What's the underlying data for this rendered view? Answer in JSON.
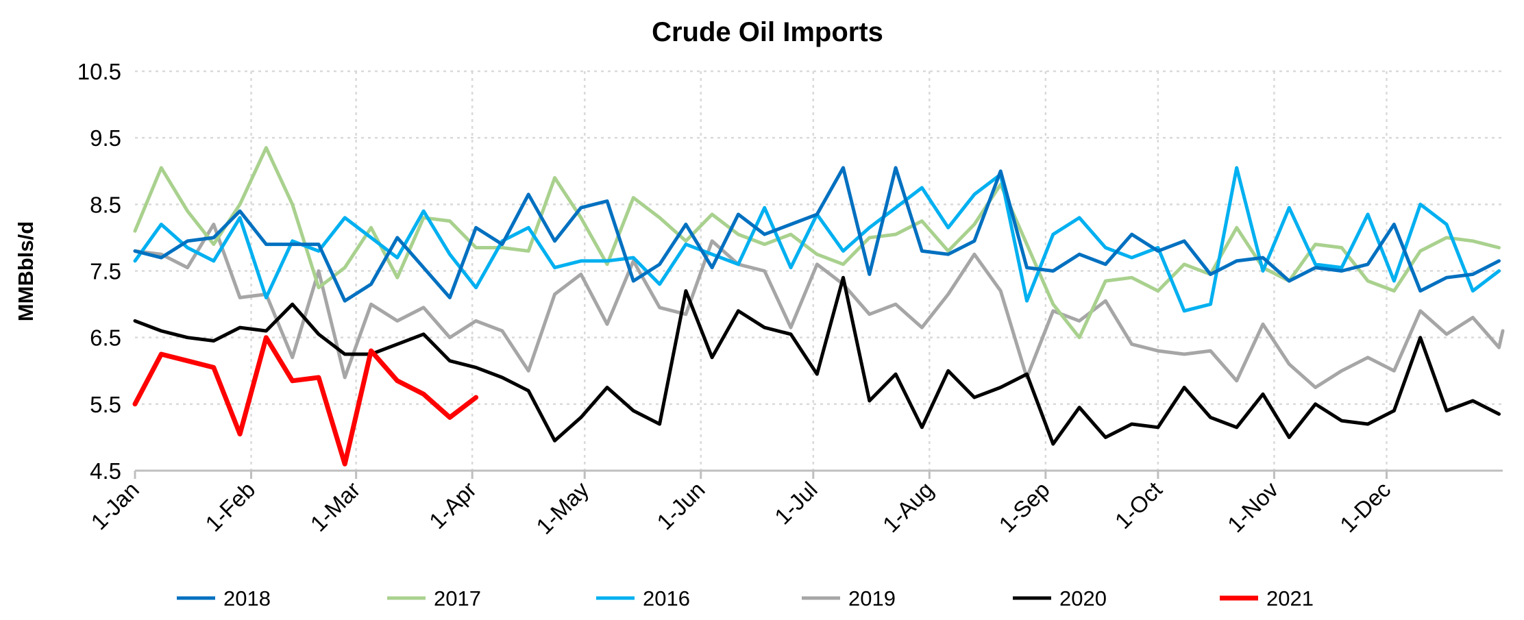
{
  "chart_data": {
    "type": "line",
    "title": "Crude Oil Imports",
    "xlabel": "",
    "ylabel": "MMBbls/d",
    "ylim": [
      4.5,
      10.5
    ],
    "yticks": [
      "4.5",
      "5.5",
      "6.5",
      "7.5",
      "8.5",
      "9.5",
      "10.5"
    ],
    "xlim_days": [
      0,
      365
    ],
    "xticks": [
      {
        "label": "1-Jan",
        "day": 0
      },
      {
        "label": "1-Feb",
        "day": 31
      },
      {
        "label": "1-Mar",
        "day": 59
      },
      {
        "label": "1-Apr",
        "day": 90
      },
      {
        "label": "1-May",
        "day": 120
      },
      {
        "label": "1-Jun",
        "day": 151
      },
      {
        "label": "1-Jul",
        "day": 181
      },
      {
        "label": "1-Aug",
        "day": 212
      },
      {
        "label": "1-Sep",
        "day": 243
      },
      {
        "label": "1-Oct",
        "day": 273
      },
      {
        "label": "1-Nov",
        "day": 304
      },
      {
        "label": "1-Dec",
        "day": 334
      }
    ],
    "x_step_days": 7,
    "grid": true,
    "legend_position": "bottom",
    "series": [
      {
        "name": "2018",
        "color": "#0070c0",
        "values": [
          7.8,
          7.7,
          7.95,
          8.0,
          8.4,
          7.9,
          7.9,
          7.9,
          7.05,
          7.3,
          8.0,
          7.55,
          7.1,
          8.15,
          7.9,
          8.65,
          7.95,
          8.45,
          8.55,
          7.35,
          7.6,
          8.2,
          7.55,
          8.35,
          8.05,
          8.2,
          8.35,
          9.05,
          7.45,
          9.05,
          7.8,
          7.75,
          7.95,
          9.0,
          7.55,
          7.5,
          7.75,
          7.6,
          8.05,
          7.8,
          7.95,
          7.45,
          7.65,
          7.7,
          7.35,
          7.55,
          7.5,
          7.6,
          8.2,
          7.2,
          7.4,
          7.45,
          7.65
        ]
      },
      {
        "name": "2017",
        "color": "#a9d18e",
        "values": [
          8.1,
          9.05,
          8.4,
          7.9,
          8.5,
          9.35,
          8.5,
          7.25,
          7.55,
          8.15,
          7.4,
          8.3,
          8.25,
          7.85,
          7.85,
          7.8,
          8.9,
          8.3,
          7.6,
          8.6,
          8.3,
          7.95,
          8.35,
          8.05,
          7.9,
          8.05,
          7.75,
          7.6,
          8.0,
          8.05,
          8.25,
          7.8,
          8.2,
          8.8,
          7.9,
          7.0,
          6.5,
          7.35,
          7.4,
          7.2,
          7.6,
          7.45,
          8.15,
          7.55,
          7.35,
          7.9,
          7.85,
          7.35,
          7.2,
          7.8,
          8.0,
          7.95,
          7.85
        ]
      },
      {
        "name": "2016",
        "color": "#00b0f0",
        "values": [
          7.65,
          8.2,
          7.85,
          7.65,
          8.3,
          7.1,
          7.95,
          7.8,
          8.3,
          8.0,
          7.7,
          8.4,
          7.75,
          7.25,
          7.95,
          8.15,
          7.55,
          7.65,
          7.65,
          7.7,
          7.3,
          7.9,
          7.75,
          7.6,
          8.45,
          7.55,
          8.35,
          7.8,
          8.15,
          8.45,
          8.75,
          8.15,
          8.65,
          8.95,
          7.05,
          8.05,
          8.3,
          7.85,
          7.7,
          7.85,
          6.9,
          7.0,
          9.05,
          7.5,
          8.45,
          7.6,
          7.55,
          8.35,
          7.35,
          8.5,
          8.2,
          7.2,
          7.5
        ]
      },
      {
        "name": "2019",
        "color": "#a6a6a6",
        "values": [
          7.8,
          7.75,
          7.55,
          8.2,
          7.1,
          7.15,
          6.2,
          7.5,
          5.9,
          7.0,
          6.75,
          6.95,
          6.5,
          6.75,
          6.6,
          6.0,
          7.15,
          7.45,
          6.7,
          7.65,
          6.95,
          6.85,
          7.95,
          7.6,
          7.5,
          6.65,
          7.6,
          7.3,
          6.85,
          7.0,
          6.65,
          7.15,
          7.75,
          7.2,
          5.9,
          6.9,
          6.75,
          7.05,
          6.4,
          6.3,
          6.25,
          6.3,
          5.85,
          6.7,
          6.1,
          5.75,
          6.0,
          6.2,
          6.0,
          6.9,
          6.55,
          6.8,
          6.35,
          6.6
        ]
      },
      {
        "name": "2020",
        "color": "#000000",
        "values": [
          6.75,
          6.6,
          6.5,
          6.45,
          6.65,
          6.6,
          7.0,
          6.55,
          6.25,
          6.25,
          6.4,
          6.55,
          6.15,
          6.05,
          5.9,
          5.7,
          4.95,
          5.3,
          5.75,
          5.4,
          5.2,
          7.2,
          6.2,
          6.9,
          6.65,
          6.55,
          5.95,
          7.4,
          5.55,
          5.95,
          5.15,
          6.0,
          5.6,
          5.75,
          5.95,
          4.9,
          5.45,
          5.0,
          5.2,
          5.15,
          5.75,
          5.3,
          5.15,
          5.65,
          5.0,
          5.5,
          5.25,
          5.2,
          5.4,
          6.5,
          5.4,
          5.55,
          5.35
        ]
      },
      {
        "name": "2021",
        "color": "#ff0000",
        "values": [
          5.5,
          6.25,
          6.15,
          6.05,
          5.05,
          6.5,
          5.85,
          5.9,
          4.6,
          6.3,
          5.85,
          5.65,
          5.3,
          5.6
        ]
      }
    ]
  }
}
